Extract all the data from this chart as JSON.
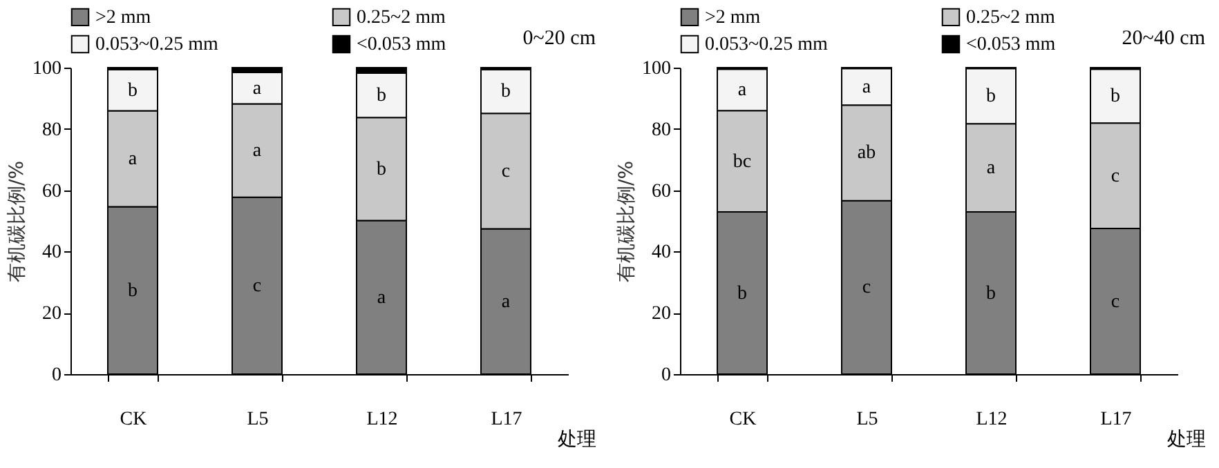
{
  "chart_data": [
    {
      "type": "bar",
      "title": "0~20 cm",
      "xlabel": "处理",
      "ylabel": "有机碳比例/%",
      "categories": [
        "CK",
        "L5",
        "L12",
        "L17"
      ],
      "stacked": true,
      "ylim": [
        0,
        100
      ],
      "yticks": [
        0,
        20,
        40,
        60,
        80,
        100
      ],
      "grid": false,
      "legend": "top",
      "series": [
        {
          "name": ">2 mm",
          "color": "#808080",
          "values": [
            54.6,
            57.7,
            50.1,
            47.4
          ],
          "value_labels": [
            "b",
            "c",
            "a",
            "a"
          ]
        },
        {
          "name": "0.25~2 mm",
          "color": "#c8c8c8",
          "values": [
            31.3,
            30.5,
            33.6,
            37.7
          ],
          "value_labels": [
            "a",
            "a",
            "b",
            "c"
          ]
        },
        {
          "name": "0.053~0.25 mm",
          "color": "#f4f4f4",
          "values": [
            13.5,
            10.2,
            14.5,
            14.3
          ],
          "value_labels": [
            "b",
            "a",
            "b",
            "b"
          ]
        },
        {
          "name": "<0.053 mm",
          "color": "#000000",
          "values": [
            0.6,
            1.6,
            1.8,
            0.6
          ]
        }
      ]
    },
    {
      "type": "bar",
      "title": "20~40 cm",
      "xlabel": "处理",
      "ylabel": "有机碳比例/%",
      "categories": [
        "CK",
        "L5",
        "L12",
        "L17"
      ],
      "stacked": true,
      "ylim": [
        0,
        100
      ],
      "yticks": [
        0,
        20,
        40,
        60,
        80,
        100
      ],
      "grid": false,
      "legend": "top",
      "series": [
        {
          "name": ">2 mm",
          "color": "#808080",
          "values": [
            52.9,
            56.6,
            52.9,
            47.5
          ],
          "value_labels": [
            "b",
            "c",
            "b",
            "c"
          ]
        },
        {
          "name": "0.25~2 mm",
          "color": "#c8c8c8",
          "values": [
            33.1,
            31.2,
            28.8,
            34.4
          ],
          "value_labels": [
            "bc",
            "ab",
            "a",
            "c"
          ]
        },
        {
          "name": "0.053~0.25 mm",
          "color": "#f4f4f4",
          "values": [
            13.5,
            11.9,
            18.0,
            17.6
          ],
          "value_labels": [
            "a",
            "a",
            "b",
            "b"
          ]
        },
        {
          "name": "<0.053 mm",
          "color": "#000000",
          "values": [
            0.5,
            0.3,
            0.3,
            0.5
          ]
        }
      ]
    }
  ]
}
